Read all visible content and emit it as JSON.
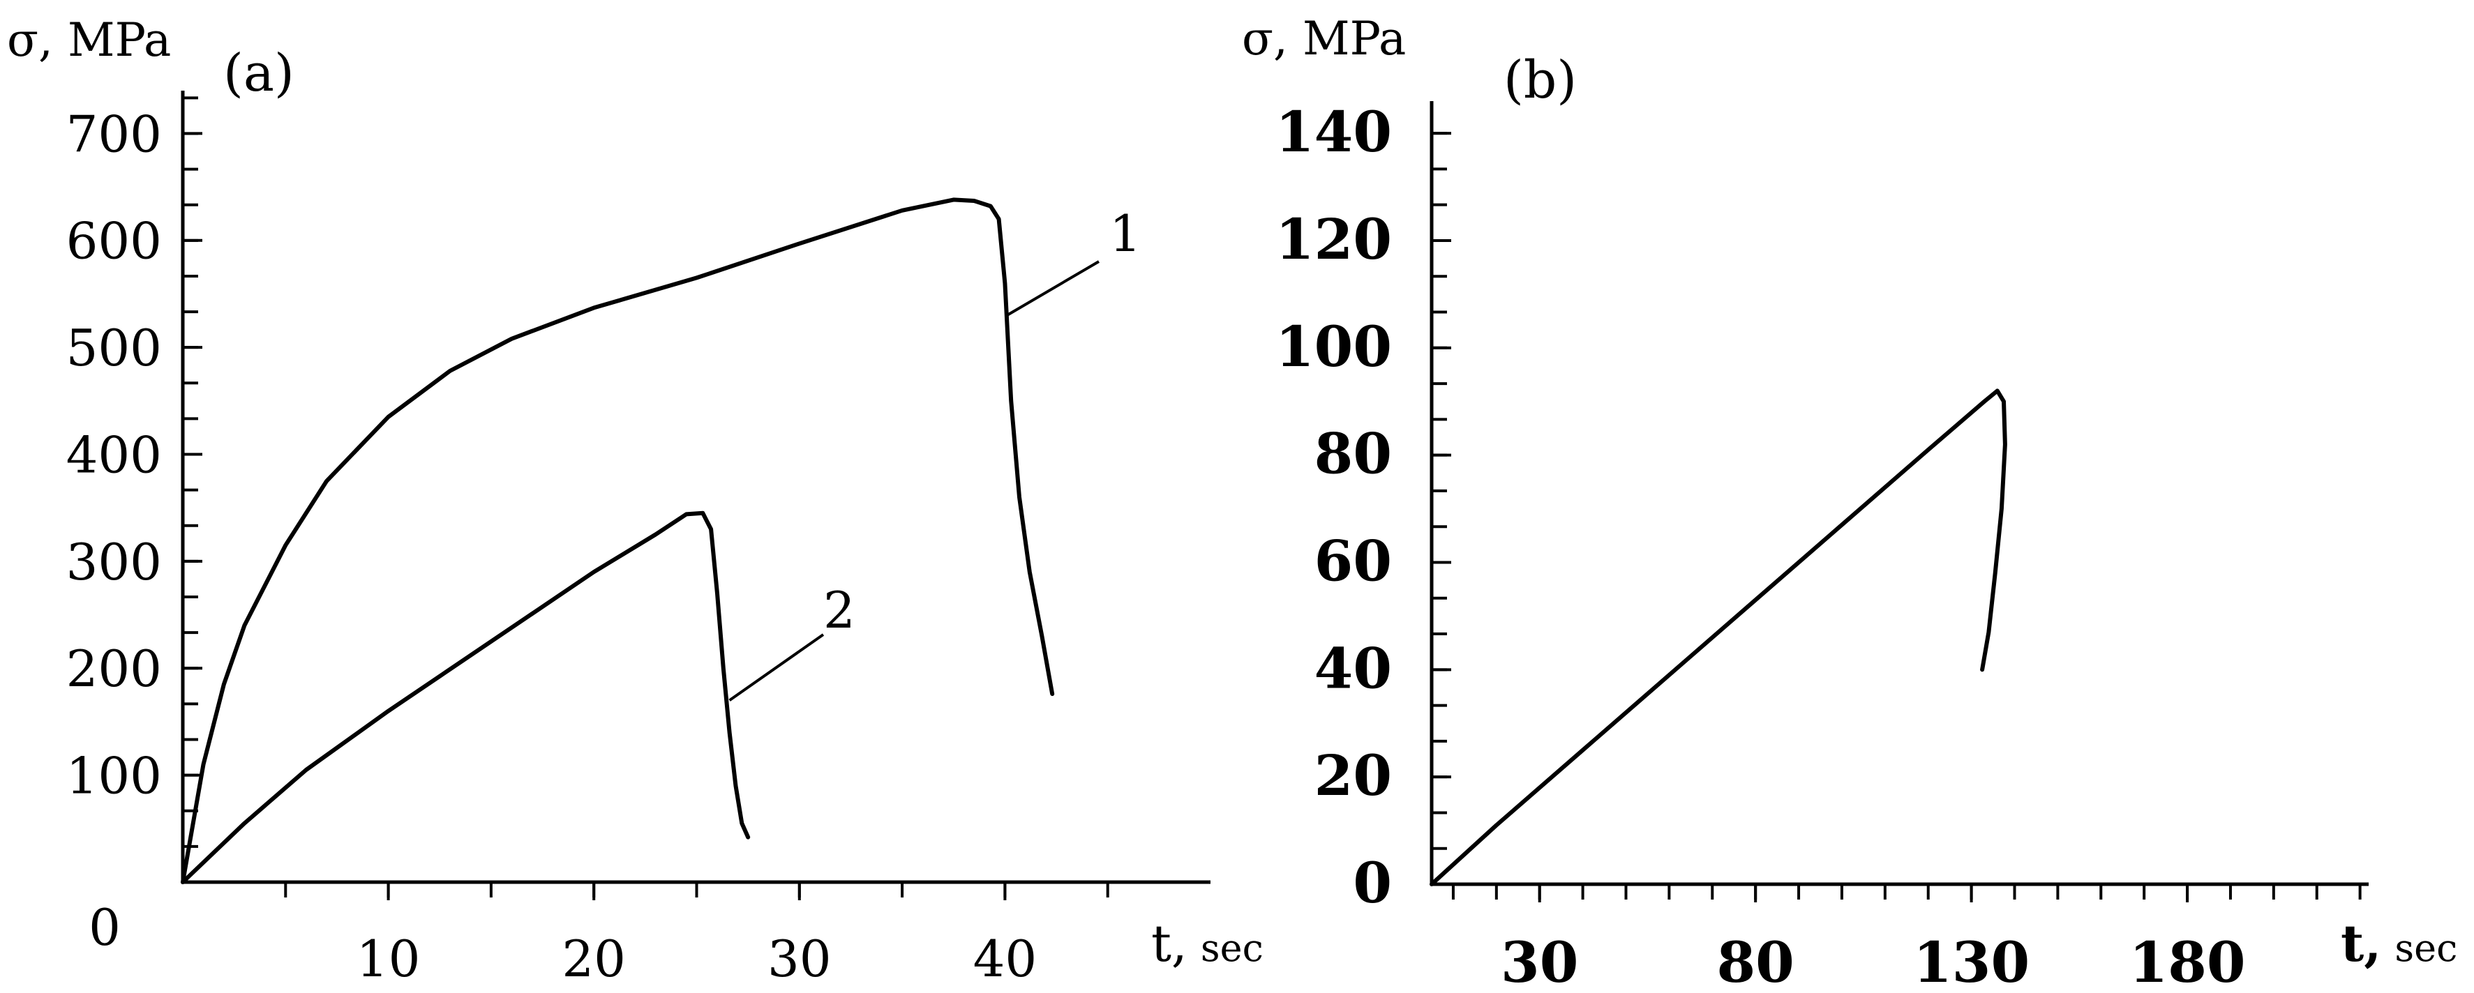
{
  "chart_data": [
    {
      "panel_label": "(a)",
      "type": "line",
      "ylabel": "σ, MPa",
      "xlabel": "t,",
      "xlabel_unit": "sec",
      "origin_label": "0",
      "xlim": [
        0,
        50
      ],
      "ylim": [
        0,
        740
      ],
      "x_ticks": [
        10,
        20,
        30,
        40
      ],
      "x_minor_step": 5,
      "y_ticks": [
        100,
        200,
        300,
        400,
        500,
        600,
        700
      ],
      "y_minor_step": 33.33,
      "grid": false,
      "series": [
        {
          "name": "1",
          "x": [
            0,
            1,
            2,
            3,
            5,
            7,
            10,
            13,
            16,
            20,
            25,
            30,
            35,
            37.5,
            38.5,
            39.3,
            39.7,
            40.0,
            40.3,
            40.7,
            41.2,
            41.8,
            42.3
          ],
          "y": [
            0,
            110,
            185,
            240,
            315,
            375,
            435,
            478,
            508,
            537,
            565,
            597,
            628,
            638,
            637,
            632,
            620,
            560,
            450,
            360,
            290,
            230,
            176
          ]
        },
        {
          "name": "2",
          "x": [
            0,
            3,
            6,
            10,
            15,
            20,
            23,
            24.5,
            25.3,
            25.7,
            26.0,
            26.3,
            26.6,
            26.9,
            27.2,
            27.5
          ],
          "y": [
            0,
            55,
            105,
            160,
            225,
            290,
            325,
            344,
            345,
            330,
            270,
            200,
            140,
            90,
            55,
            42
          ]
        }
      ]
    },
    {
      "panel_label": "(b)",
      "type": "line",
      "ylabel": "σ, MPa",
      "xlabel": "t,",
      "xlabel_unit": "sec",
      "xlim": [
        5,
        222
      ],
      "ylim": [
        0,
        146
      ],
      "x_ticks": [
        30,
        80,
        130,
        180
      ],
      "x_minor_step": 10,
      "y_ticks": [
        0,
        20,
        40,
        60,
        80,
        100,
        120,
        140
      ],
      "y_minor_step": 6.667,
      "grid": false,
      "series": [
        {
          "name": "",
          "x": [
            5,
            20,
            40,
            60,
            80,
            100,
            120,
            133,
            136,
            137.5,
            137.8,
            137.0,
            135.5,
            134.0,
            132.5
          ],
          "y": [
            0,
            11,
            25,
            39,
            53,
            67,
            81,
            90,
            92,
            90,
            82,
            70,
            58,
            47,
            40
          ]
        }
      ]
    }
  ]
}
